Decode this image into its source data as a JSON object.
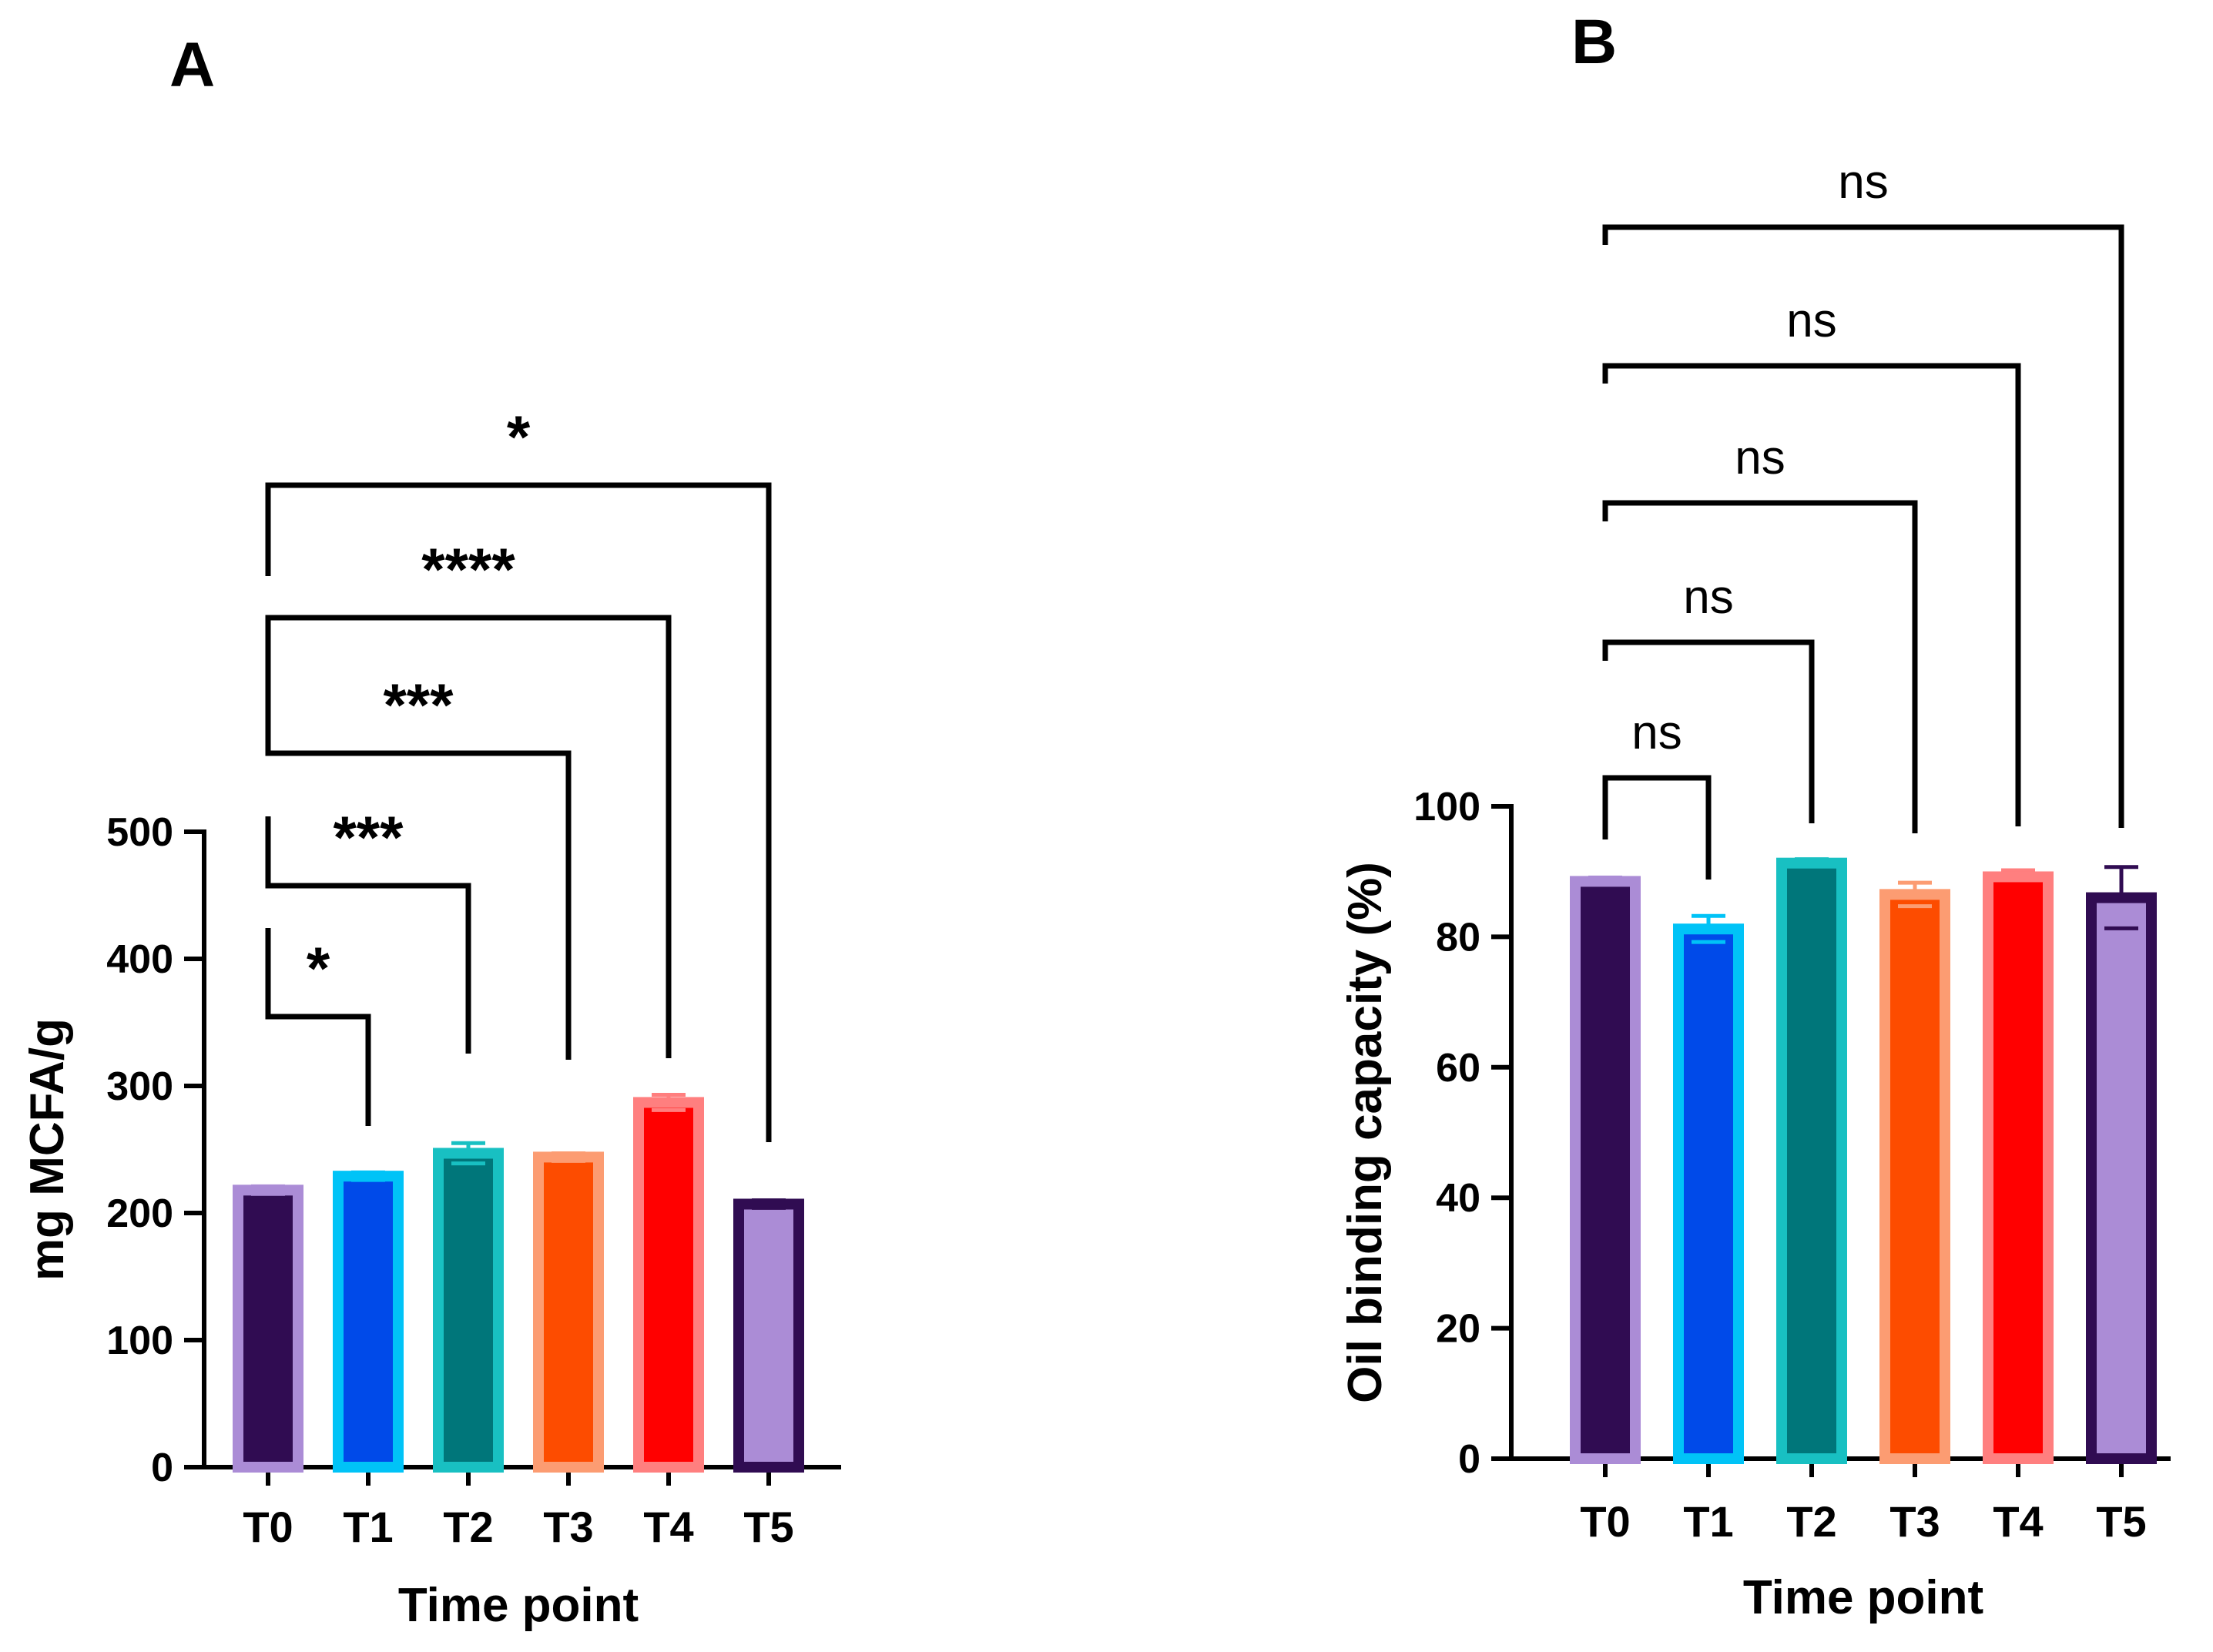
{
  "chart_data": [
    {
      "panel": "A",
      "type": "bar",
      "categories": [
        "T0",
        "T1",
        "T2",
        "T3",
        "T4",
        "T5"
      ],
      "values": [
        218,
        229,
        247,
        244,
        287,
        207
      ],
      "errors": [
        3,
        3,
        8,
        3,
        6,
        3
      ],
      "fill_colors": [
        "#300c52",
        "#004ae9",
        "#00767a",
        "#fd4c00",
        "#ff0000",
        "#ab8cd6"
      ],
      "edge_colors": [
        "#ab8cd6",
        "#00c3f7",
        "#18c0c2",
        "#fc9c72",
        "#ff7f7f",
        "#300c52"
      ],
      "xlabel": "Time point",
      "ylabel": "mg MCFA/g",
      "ylim": [
        0,
        500
      ],
      "yticks": [
        "0",
        "100",
        "200",
        "300",
        "400",
        "500"
      ],
      "grid": false,
      "comparisons": [
        {
          "from": "T0",
          "to": "T1",
          "label": "*"
        },
        {
          "from": "T0",
          "to": "T2",
          "label": "***"
        },
        {
          "from": "T0",
          "to": "T3",
          "label": "***"
        },
        {
          "from": "T0",
          "to": "T4",
          "label": "****"
        },
        {
          "from": "T0",
          "to": "T5",
          "label": "*"
        }
      ]
    },
    {
      "panel": "B",
      "type": "bar",
      "categories": [
        "T0",
        "T1",
        "T2",
        "T3",
        "T4",
        "T5"
      ],
      "values": [
        88.5,
        81.2,
        91.3,
        86.5,
        89.2,
        86.0
      ],
      "errors": [
        0.6,
        2.0,
        0.6,
        1.8,
        1.0,
        4.7
      ],
      "fill_colors": [
        "#300c52",
        "#004ae9",
        "#00767a",
        "#fd4c00",
        "#ff0000",
        "#ab8cd6"
      ],
      "edge_colors": [
        "#ab8cd6",
        "#00c3f7",
        "#18c0c2",
        "#fc9c72",
        "#ff7f7f",
        "#300c52"
      ],
      "xlabel": "Time point",
      "ylabel": "Oil binding capacity (%)",
      "ylim": [
        0,
        100
      ],
      "yticks": [
        "0",
        "20",
        "40",
        "60",
        "80",
        "100"
      ],
      "grid": false,
      "comparisons": [
        {
          "from": "T0",
          "to": "T1",
          "label": "ns"
        },
        {
          "from": "T0",
          "to": "T2",
          "label": "ns"
        },
        {
          "from": "T0",
          "to": "T3",
          "label": "ns"
        },
        {
          "from": "T0",
          "to": "T4",
          "label": "ns"
        },
        {
          "from": "T0",
          "to": "T5",
          "label": "ns"
        }
      ]
    }
  ]
}
